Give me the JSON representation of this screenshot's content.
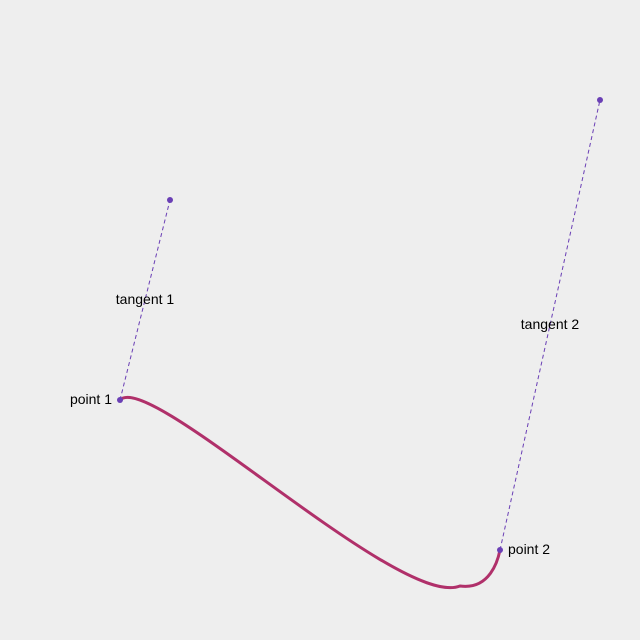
{
  "labels": {
    "point1": "point 1",
    "point2": "point 2",
    "tangent1": "tangent 1",
    "tangent2": "tangent 2"
  },
  "colors": {
    "background": "#eeeeee",
    "curve": "#b0306a",
    "handle": "#6a3fb5",
    "text": "#000000"
  }
}
